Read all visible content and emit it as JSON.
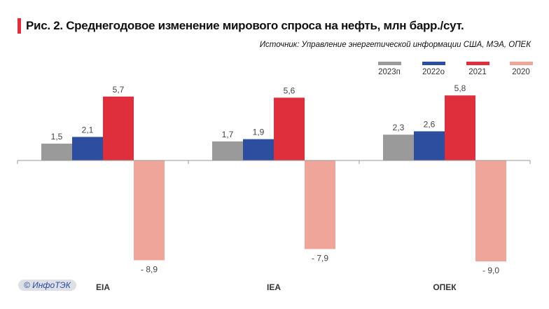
{
  "chart_data": {
    "type": "bar",
    "title": "Рис. 2. Среднегодовое изменение мирового спроса на нефть, млн барр./сут.",
    "source": "Источник: Управление энергетической информации США, МЭА, ОПЕК",
    "categories": [
      "EIA",
      "IEA",
      "ОПЕК"
    ],
    "series": [
      {
        "name": "2023п",
        "color": "#9a9a9a",
        "values": [
          1.5,
          1.7,
          2.3
        ],
        "labels": [
          "1,5",
          "1,7",
          "2,3"
        ]
      },
      {
        "name": "2022о",
        "color": "#2d4d9e",
        "values": [
          2.1,
          1.9,
          2.6
        ],
        "labels": [
          "2,1",
          "1,9",
          "2,6"
        ]
      },
      {
        "name": "2021",
        "color": "#e02f3c",
        "values": [
          5.7,
          5.6,
          5.8
        ],
        "labels": [
          "5,7",
          "5,6",
          "5,8"
        ]
      },
      {
        "name": "2020",
        "color": "#f0a59a",
        "values": [
          -8.9,
          -7.9,
          -9.0
        ],
        "labels": [
          "- 8,9",
          "- 7,9",
          "- 9,0"
        ]
      }
    ],
    "legend": "top-right",
    "grid": false
  },
  "watermark": "© ИнфоТЭК"
}
